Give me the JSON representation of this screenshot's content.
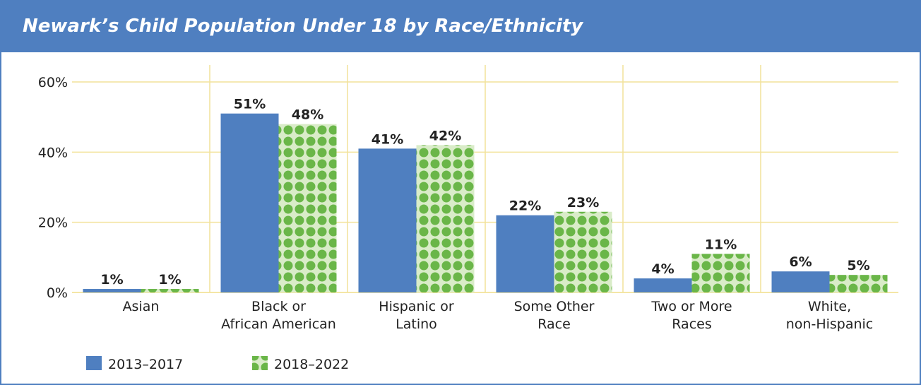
{
  "title": "Newark’s Child Population Under 18 by Race/Ethnicity",
  "colors": {
    "header_bg": "#4f7fc0",
    "series1": "#4f7fc0",
    "series2_dots": "#6ab648",
    "series2_bg": "#d9ecc8",
    "gridline": "#f2e29a"
  },
  "chart_data": {
    "type": "bar",
    "title": "Newark’s Child Population Under 18 by Race/Ethnicity",
    "categories": [
      [
        "Asian"
      ],
      [
        "Black or",
        "African American"
      ],
      [
        "Hispanic or",
        "Latino"
      ],
      [
        "Some Other",
        "Race"
      ],
      [
        "Two or More",
        "Races"
      ],
      [
        "White,",
        "non-Hispanic"
      ]
    ],
    "series": [
      {
        "name": "2013–2017",
        "values": [
          1,
          51,
          41,
          22,
          4,
          6
        ],
        "labels": [
          "1%",
          "51%",
          "41%",
          "22%",
          "4%",
          "6%"
        ]
      },
      {
        "name": "2018–2022",
        "values": [
          1,
          48,
          42,
          23,
          11,
          5
        ],
        "labels": [
          "1%",
          "48%",
          "42%",
          "23%",
          "11%",
          "5%"
        ]
      }
    ],
    "yticks": [
      0,
      20,
      40,
      60
    ],
    "ytick_labels": [
      "0%",
      "20%",
      "40%",
      "60%"
    ],
    "ylim": [
      0,
      60
    ],
    "grid": true,
    "legend_position": "bottom-left"
  }
}
